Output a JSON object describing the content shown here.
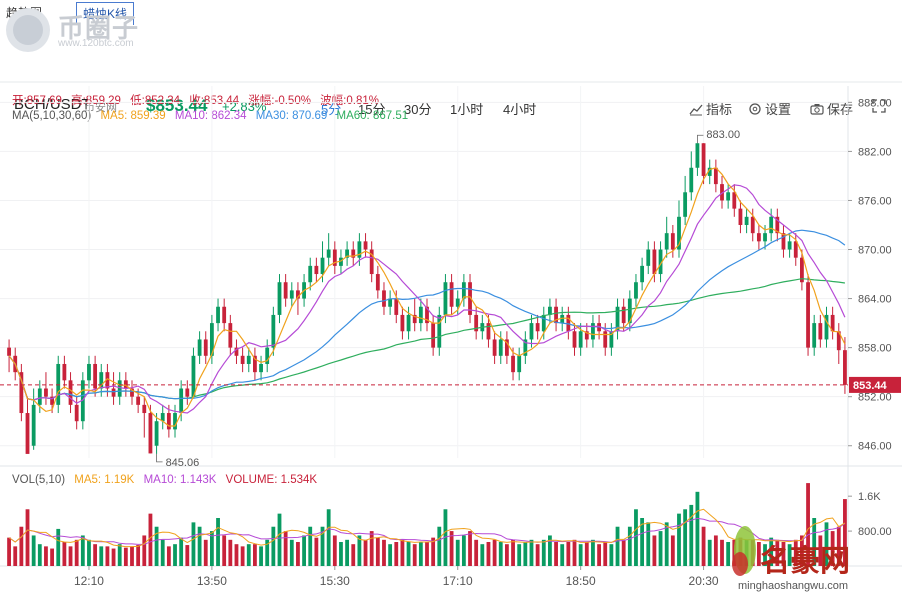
{
  "tabs": [
    "趋势图",
    "蜡烛K线"
  ],
  "logo": {
    "text": "币圈子",
    "url": "www.120btc.com"
  },
  "header": {
    "pair": "BCH/USDT",
    "exchange": "币安网",
    "price": "$853.44",
    "change": "+2.83%",
    "intervals": [
      "5分",
      "15分",
      "30分",
      "1小时",
      "4小时"
    ],
    "active_interval": "5分",
    "tools": [
      "指标",
      "设置",
      "保存"
    ]
  },
  "ohlc": {
    "open": "开:857.69",
    "high": "高:859.29",
    "low": "低:852.34",
    "close": "收:853.44",
    "change": "涨幅:-0.50%",
    "amplitude": "波幅:0.81%"
  },
  "ma_legend": {
    "label": "MA(5,10,30,60)",
    "ma5": "MA5: 859.39",
    "ma10": "MA10: 862.34",
    "ma30": "MA30: 870.69",
    "ma60": "MA60: 867.51"
  },
  "vol_legend": {
    "label": "VOL(5,10)",
    "ma5": "MA5: 1.19K",
    "ma10": "MA10: 1.143K",
    "volume": "VOLUME: 1.534K"
  },
  "price_marker": "853.44",
  "max_label": "883.00",
  "min_label": "845.06",
  "watermark": {
    "text": "名豪网",
    "url": "minghaoshangwu.com"
  },
  "colors": {
    "up": "#0a9b62",
    "down": "#c8223a",
    "ma5": "#f0a21d",
    "ma10": "#b64bd6",
    "ma30": "#3b8fe0",
    "ma60": "#2fae5e"
  },
  "chart_data": {
    "type": "candlestick",
    "x_ticks": [
      "12:10",
      "13:50",
      "15:30",
      "17:10",
      "18:50",
      "20:30"
    ],
    "y_ticks": [
      "888.00",
      "882.00",
      "876.00",
      "870.00",
      "864.00",
      "858.00",
      "852.00",
      "846.00"
    ],
    "ylim": [
      844.5,
      890
    ],
    "vol_ticks": [
      "1.6K",
      "800.00"
    ],
    "vol_lim": [
      0,
      2200
    ],
    "candles": [
      [
        858,
        857,
        859,
        855
      ],
      [
        857,
        855,
        858,
        854
      ],
      [
        855,
        850,
        856,
        849
      ],
      [
        850,
        845,
        852,
        845.5
      ],
      [
        846,
        851,
        853,
        845.5
      ],
      [
        851,
        853,
        854,
        850
      ],
      [
        853,
        852,
        855,
        851
      ],
      [
        852,
        851,
        853,
        850
      ],
      [
        851,
        856,
        857,
        850
      ],
      [
        856,
        854,
        857,
        853
      ],
      [
        854,
        851,
        855,
        850
      ],
      [
        851,
        849,
        852,
        848
      ],
      [
        849,
        854,
        855,
        848
      ],
      [
        854,
        856,
        857,
        853
      ],
      [
        856,
        853,
        857,
        852
      ],
      [
        853,
        855,
        856,
        852
      ],
      [
        855,
        853,
        856,
        852
      ],
      [
        853,
        852,
        855,
        851
      ],
      [
        852,
        854,
        855,
        851
      ],
      [
        854,
        853,
        855,
        852
      ],
      [
        853,
        852,
        854,
        851
      ],
      [
        852,
        851,
        853,
        850
      ],
      [
        851,
        850,
        852,
        847
      ],
      [
        850,
        845.06,
        851,
        845.06
      ],
      [
        846,
        849,
        850,
        845
      ],
      [
        849,
        850,
        851,
        848
      ],
      [
        850,
        848,
        851,
        847
      ],
      [
        848,
        850,
        851,
        847
      ],
      [
        850,
        853,
        854,
        849
      ],
      [
        853,
        852,
        854,
        851
      ],
      [
        852,
        857,
        858,
        852
      ],
      [
        857,
        859,
        860,
        856
      ],
      [
        859,
        857,
        860,
        856
      ],
      [
        857,
        861,
        862,
        856
      ],
      [
        861,
        863,
        864,
        860
      ],
      [
        863,
        861,
        864,
        860
      ],
      [
        861,
        858,
        862,
        857
      ],
      [
        858,
        857,
        859,
        856
      ],
      [
        857,
        856,
        858,
        855
      ],
      [
        856,
        857,
        858,
        855
      ],
      [
        857,
        855,
        858,
        854
      ],
      [
        855,
        856,
        857,
        854
      ],
      [
        856,
        858,
        859,
        855
      ],
      [
        858,
        862,
        863,
        857
      ],
      [
        862,
        866,
        867,
        861
      ],
      [
        866,
        864,
        867,
        863
      ],
      [
        864,
        865,
        866,
        863
      ],
      [
        865,
        864,
        866,
        862
      ],
      [
        864,
        866,
        867,
        863
      ],
      [
        866,
        868,
        869,
        865
      ],
      [
        868,
        867,
        869,
        866
      ],
      [
        867,
        869,
        871,
        866
      ],
      [
        869,
        870,
        872,
        868
      ],
      [
        870,
        868,
        871,
        867
      ],
      [
        868,
        869,
        870,
        867
      ],
      [
        869,
        870,
        871,
        868
      ],
      [
        870,
        869,
        871,
        868
      ],
      [
        869,
        871,
        872,
        868
      ],
      [
        871,
        870,
        872,
        869
      ],
      [
        870,
        867,
        871,
        866
      ],
      [
        867,
        865,
        868,
        864
      ],
      [
        865,
        863,
        866,
        862
      ],
      [
        863,
        864,
        865,
        862
      ],
      [
        864,
        862,
        865,
        861
      ],
      [
        862,
        860,
        863,
        859
      ],
      [
        860,
        862,
        863,
        859
      ],
      [
        862,
        861,
        864,
        860
      ],
      [
        861,
        863,
        864,
        860
      ],
      [
        863,
        861,
        864,
        860
      ],
      [
        861,
        858,
        862,
        857
      ],
      [
        858,
        862,
        863,
        857
      ],
      [
        862,
        866,
        867,
        861
      ],
      [
        866,
        863,
        867,
        862
      ],
      [
        863,
        864,
        865,
        862
      ],
      [
        864,
        866,
        867,
        863
      ],
      [
        866,
        862,
        867,
        861
      ],
      [
        862,
        860,
        863,
        859
      ],
      [
        860,
        861,
        862,
        859
      ],
      [
        861,
        859,
        862,
        858
      ],
      [
        859,
        857,
        860,
        856
      ],
      [
        857,
        859,
        860,
        856
      ],
      [
        859,
        857,
        860,
        856
      ],
      [
        857,
        855,
        858,
        854
      ],
      [
        855,
        857,
        858,
        854
      ],
      [
        857,
        859,
        860,
        856
      ],
      [
        859,
        861,
        862,
        858
      ],
      [
        861,
        860,
        862,
        859
      ],
      [
        860,
        862,
        863,
        859
      ],
      [
        862,
        863,
        864,
        861
      ],
      [
        863,
        861,
        864,
        860
      ],
      [
        861,
        862,
        863,
        860
      ],
      [
        862,
        860,
        863,
        859
      ],
      [
        860,
        858,
        861,
        857
      ],
      [
        858,
        860,
        861,
        857
      ],
      [
        860,
        859,
        861,
        858
      ],
      [
        859,
        861,
        862,
        858
      ],
      [
        861,
        860,
        862,
        859
      ],
      [
        860,
        858,
        861,
        857
      ],
      [
        858,
        860,
        861,
        857
      ],
      [
        860,
        863,
        864,
        859
      ],
      [
        863,
        861,
        864,
        860
      ],
      [
        861,
        864,
        865,
        860
      ],
      [
        864,
        866,
        867,
        863
      ],
      [
        866,
        868,
        869,
        865
      ],
      [
        868,
        870,
        871,
        867
      ],
      [
        870,
        867,
        871,
        866
      ],
      [
        867,
        870,
        871,
        866
      ],
      [
        870,
        872,
        874,
        869
      ],
      [
        872,
        870,
        873,
        869
      ],
      [
        870,
        874,
        876,
        869
      ],
      [
        874,
        877,
        879,
        873
      ],
      [
        877,
        880,
        882,
        876
      ],
      [
        880,
        883,
        883,
        879
      ],
      [
        883,
        879,
        883,
        878
      ],
      [
        879,
        880,
        881,
        878
      ],
      [
        880,
        878,
        881,
        877
      ],
      [
        878,
        876,
        879,
        875
      ],
      [
        876,
        877,
        878,
        875
      ],
      [
        877,
        875,
        878,
        874
      ],
      [
        875,
        873,
        876,
        872
      ],
      [
        873,
        874,
        875,
        872
      ],
      [
        874,
        872,
        875,
        871
      ],
      [
        872,
        871,
        873,
        870
      ],
      [
        871,
        872,
        873,
        870
      ],
      [
        872,
        874,
        875,
        871
      ],
      [
        874,
        872,
        875,
        871
      ],
      [
        872,
        870,
        873,
        869
      ],
      [
        870,
        871,
        872,
        869
      ],
      [
        871,
        869,
        872,
        868
      ],
      [
        869,
        866,
        870,
        865
      ],
      [
        866,
        858,
        867,
        857
      ],
      [
        858,
        861,
        862,
        857
      ],
      [
        861,
        859,
        862,
        858
      ],
      [
        859,
        862,
        863,
        858
      ],
      [
        862,
        860,
        863,
        859
      ],
      [
        860,
        857.69,
        861,
        856
      ],
      [
        857.69,
        853.44,
        859.29,
        852.34
      ]
    ],
    "volumes": [
      650,
      450,
      900,
      1300,
      700,
      500,
      450,
      400,
      850,
      550,
      450,
      600,
      700,
      600,
      500,
      450,
      450,
      400,
      500,
      420,
      450,
      480,
      700,
      1200,
      900,
      600,
      450,
      500,
      650,
      480,
      1000,
      900,
      600,
      800,
      1100,
      700,
      600,
      500,
      450,
      500,
      500,
      450,
      600,
      900,
      1200,
      800,
      600,
      550,
      700,
      900,
      650,
      900,
      1300,
      700,
      550,
      600,
      500,
      700,
      600,
      800,
      650,
      600,
      500,
      550,
      600,
      550,
      500,
      550,
      550,
      650,
      900,
      1300,
      800,
      600,
      700,
      800,
      600,
      500,
      550,
      600,
      550,
      500,
      600,
      500,
      550,
      600,
      500,
      600,
      700,
      550,
      500,
      550,
      600,
      500,
      550,
      600,
      500,
      550,
      500,
      900,
      600,
      900,
      1300,
      1100,
      1000,
      700,
      800,
      1000,
      700,
      1200,
      1300,
      1400,
      1700,
      900,
      600,
      700,
      600,
      550,
      600,
      650,
      600,
      600,
      550,
      500,
      650,
      600,
      550,
      500,
      600,
      700,
      1900,
      1100,
      700,
      1000,
      800,
      900,
      1534
    ]
  }
}
